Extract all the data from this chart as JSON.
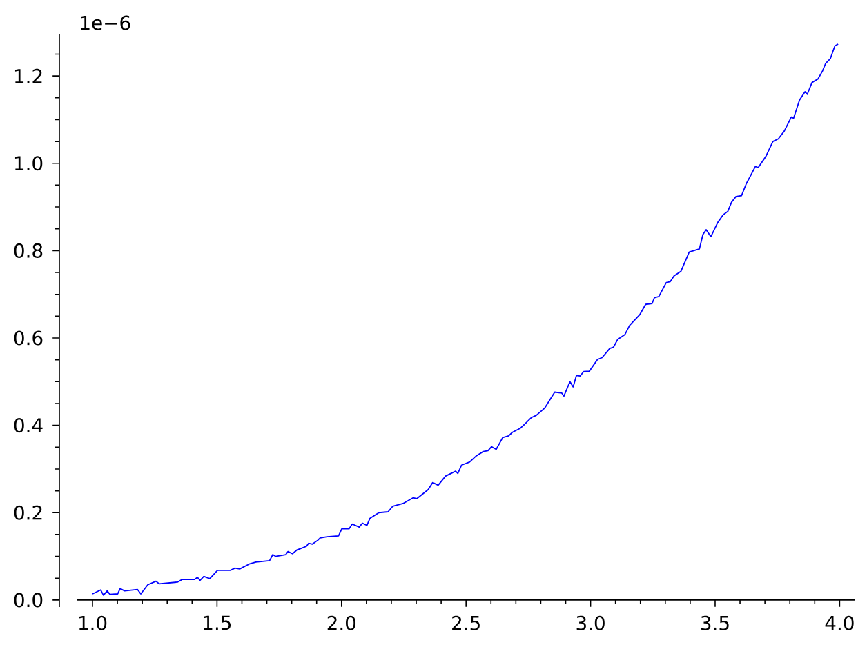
{
  "chart_data": {
    "type": "line",
    "color": "#0000ff",
    "x": [
      1.0,
      1.033,
      1.044,
      1.059,
      1.07,
      1.101,
      1.111,
      1.129,
      1.181,
      1.194,
      1.222,
      1.255,
      1.268,
      1.341,
      1.36,
      1.41,
      1.421,
      1.432,
      1.447,
      1.471,
      1.502,
      1.554,
      1.572,
      1.591,
      1.632,
      1.656,
      1.711,
      1.724,
      1.735,
      1.776,
      1.785,
      1.803,
      1.822,
      1.837,
      1.859,
      1.868,
      1.883,
      1.905,
      1.914,
      1.942,
      1.988,
      2.001,
      2.03,
      2.043,
      2.071,
      2.084,
      2.102,
      2.114,
      2.15,
      2.187,
      2.206,
      2.247,
      2.287,
      2.302,
      2.348,
      2.366,
      2.388,
      2.418,
      2.458,
      2.467,
      2.482,
      2.514,
      2.541,
      2.569,
      2.588,
      2.602,
      2.621,
      2.647,
      2.671,
      2.686,
      2.717,
      2.736,
      2.763,
      2.782,
      2.815,
      2.856,
      2.884,
      2.893,
      2.917,
      2.93,
      2.943,
      2.958,
      2.972,
      2.995,
      3.028,
      3.046,
      3.077,
      3.092,
      3.109,
      3.138,
      3.157,
      3.197,
      3.221,
      3.247,
      3.256,
      3.274,
      3.304,
      3.32,
      3.335,
      3.363,
      3.396,
      3.437,
      3.451,
      3.464,
      3.483,
      3.51,
      3.532,
      3.551,
      3.566,
      3.584,
      3.606,
      3.625,
      3.662,
      3.673,
      3.704,
      3.732,
      3.754,
      3.778,
      3.806,
      3.815,
      3.839,
      3.861,
      3.87,
      3.889,
      3.913,
      3.931,
      3.944,
      3.963,
      3.981,
      3.994
    ],
    "values": [
      0.014,
      0.023,
      0.011,
      0.021,
      0.013,
      0.014,
      0.026,
      0.021,
      0.024,
      0.014,
      0.035,
      0.043,
      0.037,
      0.041,
      0.047,
      0.047,
      0.052,
      0.045,
      0.054,
      0.049,
      0.068,
      0.068,
      0.073,
      0.071,
      0.083,
      0.087,
      0.09,
      0.104,
      0.1,
      0.104,
      0.111,
      0.106,
      0.115,
      0.118,
      0.123,
      0.13,
      0.128,
      0.137,
      0.142,
      0.145,
      0.147,
      0.163,
      0.163,
      0.174,
      0.167,
      0.176,
      0.171,
      0.187,
      0.2,
      0.202,
      0.215,
      0.221,
      0.234,
      0.232,
      0.253,
      0.269,
      0.263,
      0.284,
      0.295,
      0.29,
      0.309,
      0.316,
      0.33,
      0.34,
      0.342,
      0.351,
      0.345,
      0.372,
      0.376,
      0.384,
      0.393,
      0.403,
      0.418,
      0.423,
      0.439,
      0.476,
      0.474,
      0.467,
      0.5,
      0.488,
      0.514,
      0.513,
      0.523,
      0.524,
      0.551,
      0.555,
      0.576,
      0.579,
      0.597,
      0.608,
      0.629,
      0.653,
      0.677,
      0.679,
      0.692,
      0.695,
      0.727,
      0.729,
      0.742,
      0.753,
      0.797,
      0.804,
      0.837,
      0.848,
      0.832,
      0.864,
      0.882,
      0.89,
      0.911,
      0.924,
      0.926,
      0.953,
      0.993,
      0.99,
      1.016,
      1.05,
      1.056,
      1.074,
      1.106,
      1.103,
      1.145,
      1.164,
      1.158,
      1.185,
      1.193,
      1.211,
      1.229,
      1.24,
      1.269,
      1.273
    ],
    "xlim": [
      0.867,
      4.06
    ],
    "ylim": [
      -0.016,
      1.295
    ],
    "xticks": [
      {
        "value": 1.0,
        "label": "1.0"
      },
      {
        "value": 1.1,
        "label": null
      },
      {
        "value": 1.2,
        "label": null
      },
      {
        "value": 1.3,
        "label": null
      },
      {
        "value": 1.4,
        "label": null
      },
      {
        "value": 1.5,
        "label": "1.5"
      },
      {
        "value": 1.6,
        "label": null
      },
      {
        "value": 1.7,
        "label": null
      },
      {
        "value": 1.8,
        "label": null
      },
      {
        "value": 1.9,
        "label": null
      },
      {
        "value": 2.0,
        "label": "2.0"
      },
      {
        "value": 2.1,
        "label": null
      },
      {
        "value": 2.2,
        "label": null
      },
      {
        "value": 2.3,
        "label": null
      },
      {
        "value": 2.4,
        "label": null
      },
      {
        "value": 2.5,
        "label": "2.5"
      },
      {
        "value": 2.6,
        "label": null
      },
      {
        "value": 2.7,
        "label": null
      },
      {
        "value": 2.8,
        "label": null
      },
      {
        "value": 2.9,
        "label": null
      },
      {
        "value": 3.0,
        "label": "3.0"
      },
      {
        "value": 3.1,
        "label": null
      },
      {
        "value": 3.2,
        "label": null
      },
      {
        "value": 3.3,
        "label": null
      },
      {
        "value": 3.4,
        "label": null
      },
      {
        "value": 3.5,
        "label": "3.5"
      },
      {
        "value": 3.6,
        "label": null
      },
      {
        "value": 3.7,
        "label": null
      },
      {
        "value": 3.8,
        "label": null
      },
      {
        "value": 3.9,
        "label": null
      },
      {
        "value": 4.0,
        "label": "4.0"
      }
    ],
    "yticks": [
      {
        "value": 0,
        "label": "0.0"
      },
      {
        "value": 0.05,
        "label": null
      },
      {
        "value": 0.1,
        "label": null
      },
      {
        "value": 0.15,
        "label": null
      },
      {
        "value": 0.2,
        "label": "0.2"
      },
      {
        "value": 0.25,
        "label": null
      },
      {
        "value": 0.3,
        "label": null
      },
      {
        "value": 0.35,
        "label": null
      },
      {
        "value": 0.4,
        "label": "0.4"
      },
      {
        "value": 0.45,
        "label": null
      },
      {
        "value": 0.5,
        "label": null
      },
      {
        "value": 0.55,
        "label": null
      },
      {
        "value": 0.6,
        "label": "0.6"
      },
      {
        "value": 0.65,
        "label": null
      },
      {
        "value": 0.7,
        "label": null
      },
      {
        "value": 0.75,
        "label": null
      },
      {
        "value": 0.8,
        "label": "0.8"
      },
      {
        "value": 0.85,
        "label": null
      },
      {
        "value": 0.9,
        "label": null
      },
      {
        "value": 0.95,
        "label": null
      },
      {
        "value": 1.0,
        "label": "1.0"
      },
      {
        "value": 1.05,
        "label": null
      },
      {
        "value": 1.1,
        "label": null
      },
      {
        "value": 1.15,
        "label": null
      },
      {
        "value": 1.2,
        "label": "1.2"
      },
      {
        "value": 1.25,
        "label": null
      }
    ],
    "annotations": [
      "1e−6"
    ]
  }
}
